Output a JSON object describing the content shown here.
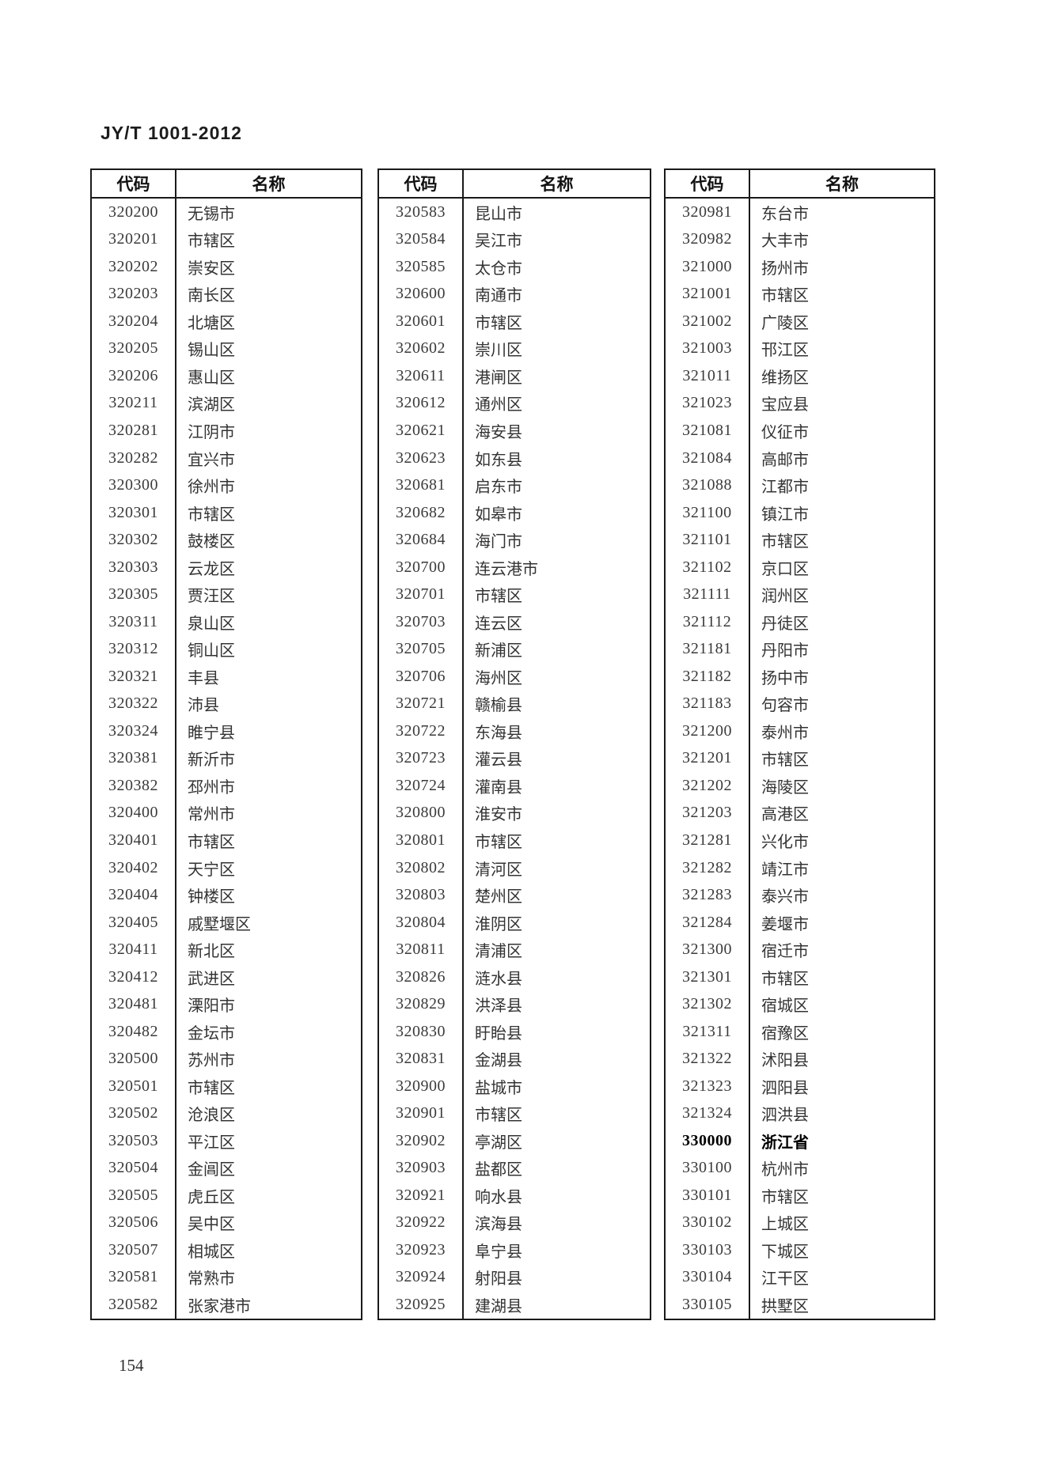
{
  "page": {
    "doc_code": "JY/T 1001-2012",
    "page_number": "154"
  },
  "colors": {
    "background": "#ffffff",
    "border": "#1a1a1a",
    "text": "#333333"
  },
  "table_header": {
    "code": "代码",
    "name": "名称"
  },
  "tables": [
    {
      "rows": [
        [
          "320200",
          "无锡市"
        ],
        [
          "320201",
          "市辖区"
        ],
        [
          "320202",
          "崇安区"
        ],
        [
          "320203",
          "南长区"
        ],
        [
          "320204",
          "北塘区"
        ],
        [
          "320205",
          "锡山区"
        ],
        [
          "320206",
          "惠山区"
        ],
        [
          "320211",
          "滨湖区"
        ],
        [
          "320281",
          "江阴市"
        ],
        [
          "320282",
          "宜兴市"
        ],
        [
          "320300",
          "徐州市"
        ],
        [
          "320301",
          "市辖区"
        ],
        [
          "320302",
          "鼓楼区"
        ],
        [
          "320303",
          "云龙区"
        ],
        [
          "320305",
          "贾汪区"
        ],
        [
          "320311",
          "泉山区"
        ],
        [
          "320312",
          "铜山区"
        ],
        [
          "320321",
          "丰县"
        ],
        [
          "320322",
          "沛县"
        ],
        [
          "320324",
          "睢宁县"
        ],
        [
          "320381",
          "新沂市"
        ],
        [
          "320382",
          "邳州市"
        ],
        [
          "320400",
          "常州市"
        ],
        [
          "320401",
          "市辖区"
        ],
        [
          "320402",
          "天宁区"
        ],
        [
          "320404",
          "钟楼区"
        ],
        [
          "320405",
          "戚墅堰区"
        ],
        [
          "320411",
          "新北区"
        ],
        [
          "320412",
          "武进区"
        ],
        [
          "320481",
          "溧阳市"
        ],
        [
          "320482",
          "金坛市"
        ],
        [
          "320500",
          "苏州市"
        ],
        [
          "320501",
          "市辖区"
        ],
        [
          "320502",
          "沧浪区"
        ],
        [
          "320503",
          "平江区"
        ],
        [
          "320504",
          "金阊区"
        ],
        [
          "320505",
          "虎丘区"
        ],
        [
          "320506",
          "吴中区"
        ],
        [
          "320507",
          "相城区"
        ],
        [
          "320581",
          "常熟市"
        ],
        [
          "320582",
          "张家港市"
        ]
      ]
    },
    {
      "rows": [
        [
          "320583",
          "昆山市"
        ],
        [
          "320584",
          "吴江市"
        ],
        [
          "320585",
          "太仓市"
        ],
        [
          "320600",
          "南通市"
        ],
        [
          "320601",
          "市辖区"
        ],
        [
          "320602",
          "崇川区"
        ],
        [
          "320611",
          "港闸区"
        ],
        [
          "320612",
          "通州区"
        ],
        [
          "320621",
          "海安县"
        ],
        [
          "320623",
          "如东县"
        ],
        [
          "320681",
          "启东市"
        ],
        [
          "320682",
          "如皋市"
        ],
        [
          "320684",
          "海门市"
        ],
        [
          "320700",
          "连云港市"
        ],
        [
          "320701",
          "市辖区"
        ],
        [
          "320703",
          "连云区"
        ],
        [
          "320705",
          "新浦区"
        ],
        [
          "320706",
          "海州区"
        ],
        [
          "320721",
          "赣榆县"
        ],
        [
          "320722",
          "东海县"
        ],
        [
          "320723",
          "灌云县"
        ],
        [
          "320724",
          "灌南县"
        ],
        [
          "320800",
          "淮安市"
        ],
        [
          "320801",
          "市辖区"
        ],
        [
          "320802",
          "清河区"
        ],
        [
          "320803",
          "楚州区"
        ],
        [
          "320804",
          "淮阴区"
        ],
        [
          "320811",
          "清浦区"
        ],
        [
          "320826",
          "涟水县"
        ],
        [
          "320829",
          "洪泽县"
        ],
        [
          "320830",
          "盱眙县"
        ],
        [
          "320831",
          "金湖县"
        ],
        [
          "320900",
          "盐城市"
        ],
        [
          "320901",
          "市辖区"
        ],
        [
          "320902",
          "亭湖区"
        ],
        [
          "320903",
          "盐都区"
        ],
        [
          "320921",
          "响水县"
        ],
        [
          "320922",
          "滨海县"
        ],
        [
          "320923",
          "阜宁县"
        ],
        [
          "320924",
          "射阳县"
        ],
        [
          "320925",
          "建湖县"
        ]
      ]
    },
    {
      "rows": [
        [
          "320981",
          "东台市"
        ],
        [
          "320982",
          "大丰市"
        ],
        [
          "321000",
          "扬州市"
        ],
        [
          "321001",
          "市辖区"
        ],
        [
          "321002",
          "广陵区"
        ],
        [
          "321003",
          "邗江区"
        ],
        [
          "321011",
          "维扬区"
        ],
        [
          "321023",
          "宝应县"
        ],
        [
          "321081",
          "仪征市"
        ],
        [
          "321084",
          "高邮市"
        ],
        [
          "321088",
          "江都市"
        ],
        [
          "321100",
          "镇江市"
        ],
        [
          "321101",
          "市辖区"
        ],
        [
          "321102",
          "京口区"
        ],
        [
          "321111",
          "润州区"
        ],
        [
          "321112",
          "丹徒区"
        ],
        [
          "321181",
          "丹阳市"
        ],
        [
          "321182",
          "扬中市"
        ],
        [
          "321183",
          "句容市"
        ],
        [
          "321200",
          "泰州市"
        ],
        [
          "321201",
          "市辖区"
        ],
        [
          "321202",
          "海陵区"
        ],
        [
          "321203",
          "高港区"
        ],
        [
          "321281",
          "兴化市"
        ],
        [
          "321282",
          "靖江市"
        ],
        [
          "321283",
          "泰兴市"
        ],
        [
          "321284",
          "姜堰市"
        ],
        [
          "321300",
          "宿迁市"
        ],
        [
          "321301",
          "市辖区"
        ],
        [
          "321302",
          "宿城区"
        ],
        [
          "321311",
          "宿豫区"
        ],
        [
          "321322",
          "沭阳县"
        ],
        [
          "321323",
          "泗阳县"
        ],
        [
          "321324",
          "泗洪县"
        ],
        [
          "330000",
          "浙江省",
          "bold"
        ],
        [
          "330100",
          "杭州市"
        ],
        [
          "330101",
          "市辖区"
        ],
        [
          "330102",
          "上城区"
        ],
        [
          "330103",
          "下城区"
        ],
        [
          "330104",
          "江干区"
        ],
        [
          "330105",
          "拱墅区"
        ]
      ]
    }
  ]
}
